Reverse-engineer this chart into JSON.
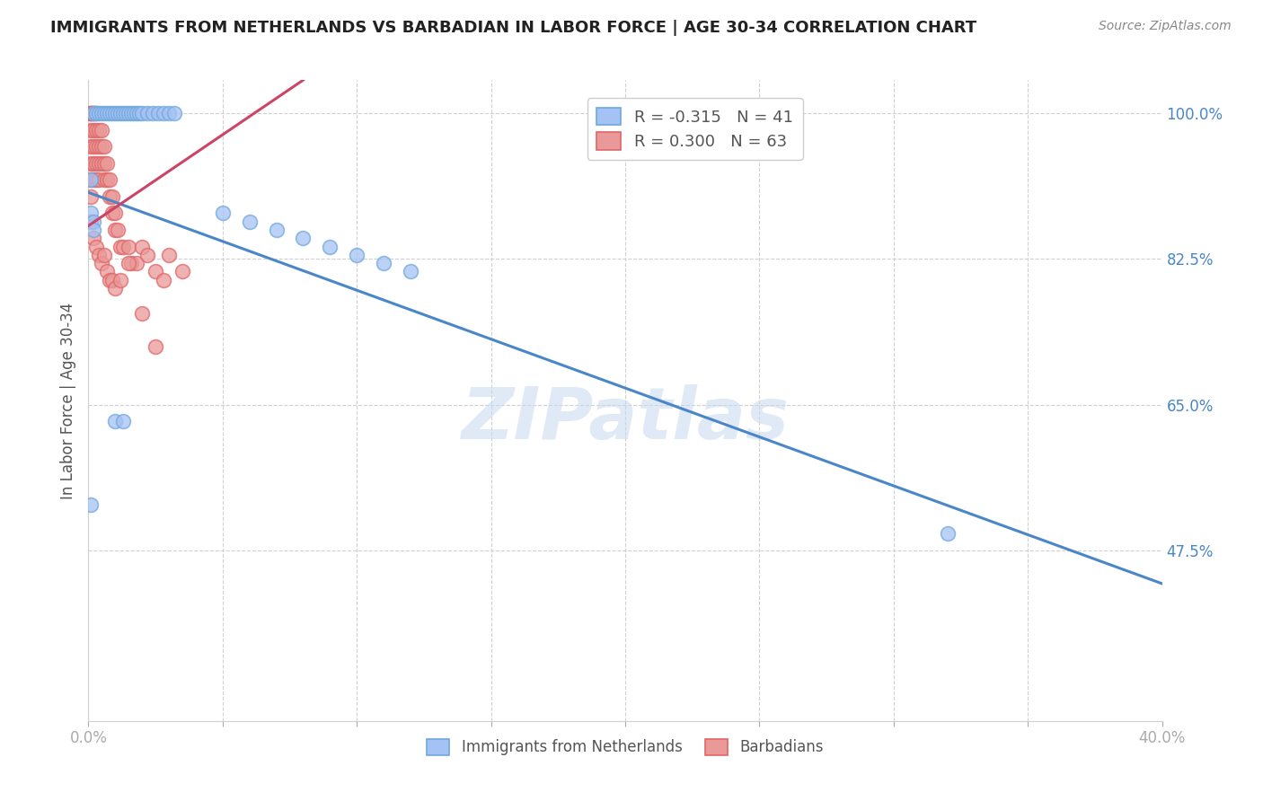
{
  "title": "IMMIGRANTS FROM NETHERLANDS VS BARBADIAN IN LABOR FORCE | AGE 30-34 CORRELATION CHART",
  "source": "Source: ZipAtlas.com",
  "ylabel": "In Labor Force | Age 30-34",
  "xlim": [
    0.0,
    0.4
  ],
  "ylim": [
    0.27,
    1.04
  ],
  "yticks_right": [
    1.0,
    0.825,
    0.65,
    0.475
  ],
  "ytick_right_labels": [
    "100.0%",
    "82.5%",
    "65.0%",
    "47.5%"
  ],
  "blue_R": -0.315,
  "blue_N": 41,
  "pink_R": 0.3,
  "pink_N": 63,
  "blue_color": "#a4c2f4",
  "pink_color": "#ea9999",
  "blue_edge_color": "#6fa8dc",
  "pink_edge_color": "#e06666",
  "blue_line_color": "#4a86c8",
  "pink_line_color": "#cc4466",
  "legend_label_blue": "Immigrants from Netherlands",
  "legend_label_pink": "Barbadians",
  "watermark": "ZIPatlas",
  "blue_scatter_x": [
    0.002,
    0.003,
    0.004,
    0.005,
    0.006,
    0.007,
    0.008,
    0.009,
    0.01,
    0.011,
    0.012,
    0.013,
    0.014,
    0.015,
    0.016,
    0.017,
    0.018,
    0.019,
    0.02,
    0.022,
    0.024,
    0.026,
    0.028,
    0.03,
    0.032,
    0.001,
    0.001,
    0.002,
    0.002,
    0.05,
    0.06,
    0.07,
    0.08,
    0.09,
    0.1,
    0.11,
    0.12,
    0.01,
    0.013,
    0.001,
    0.32
  ],
  "blue_scatter_y": [
    1.0,
    1.0,
    1.0,
    1.0,
    1.0,
    1.0,
    1.0,
    1.0,
    1.0,
    1.0,
    1.0,
    1.0,
    1.0,
    1.0,
    1.0,
    1.0,
    1.0,
    1.0,
    1.0,
    1.0,
    1.0,
    1.0,
    1.0,
    1.0,
    1.0,
    0.92,
    0.88,
    0.87,
    0.86,
    0.88,
    0.87,
    0.86,
    0.85,
    0.84,
    0.83,
    0.82,
    0.81,
    0.63,
    0.63,
    0.53,
    0.495
  ],
  "pink_scatter_x": [
    0.001,
    0.001,
    0.001,
    0.001,
    0.001,
    0.001,
    0.001,
    0.001,
    0.002,
    0.002,
    0.002,
    0.002,
    0.002,
    0.002,
    0.003,
    0.003,
    0.003,
    0.003,
    0.003,
    0.004,
    0.004,
    0.004,
    0.004,
    0.005,
    0.005,
    0.005,
    0.006,
    0.006,
    0.006,
    0.007,
    0.007,
    0.008,
    0.008,
    0.009,
    0.009,
    0.01,
    0.01,
    0.011,
    0.012,
    0.013,
    0.015,
    0.016,
    0.018,
    0.02,
    0.022,
    0.025,
    0.028,
    0.03,
    0.035,
    0.001,
    0.002,
    0.003,
    0.004,
    0.005,
    0.006,
    0.007,
    0.008,
    0.009,
    0.01,
    0.012,
    0.015,
    0.02,
    0.025
  ],
  "pink_scatter_y": [
    1.0,
    1.0,
    1.0,
    0.98,
    0.96,
    0.94,
    0.92,
    0.9,
    1.0,
    1.0,
    0.98,
    0.96,
    0.94,
    0.92,
    1.0,
    0.98,
    0.96,
    0.94,
    0.92,
    0.98,
    0.96,
    0.94,
    0.92,
    0.98,
    0.96,
    0.94,
    0.96,
    0.94,
    0.92,
    0.94,
    0.92,
    0.92,
    0.9,
    0.9,
    0.88,
    0.88,
    0.86,
    0.86,
    0.84,
    0.84,
    0.84,
    0.82,
    0.82,
    0.84,
    0.83,
    0.81,
    0.8,
    0.83,
    0.81,
    0.87,
    0.85,
    0.84,
    0.83,
    0.82,
    0.83,
    0.81,
    0.8,
    0.8,
    0.79,
    0.8,
    0.82,
    0.76,
    0.72
  ],
  "blue_trend_x0": 0.0,
  "blue_trend_x1": 0.4,
  "blue_trend_y0": 0.905,
  "blue_trend_y1": 0.435,
  "pink_trend_x0": 0.0,
  "pink_trend_x1": 0.08,
  "pink_trend_y0": 0.865,
  "pink_trend_y1": 1.04
}
